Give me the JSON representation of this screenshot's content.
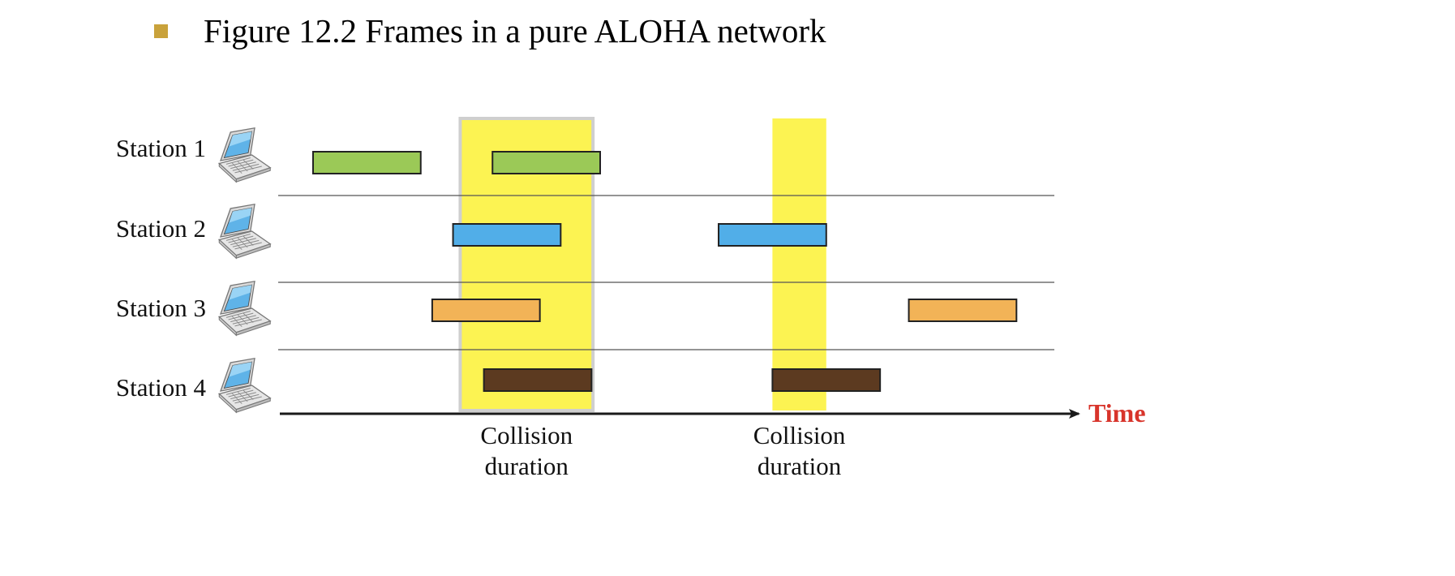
{
  "title": "Figure 12.2  Frames in a pure ALOHA network",
  "colors": {
    "bullet": "#C9A23B",
    "collision_band": "#FCF352",
    "collision_border": "#CFCFCF",
    "frame_station1": "#9BC957",
    "frame_station2": "#51AEE8",
    "frame_station3": "#F2B357",
    "frame_station4": "#5C3A20",
    "time_label": "#D8342B",
    "axis": "#1a1a1a",
    "separator": "#555555"
  },
  "stations": [
    {
      "label": "Station 1",
      "icon": "laptop-icon",
      "frames": [
        {
          "start": 0.0,
          "collided": false
        },
        {
          "start": 2.5,
          "collided": true
        }
      ]
    },
    {
      "label": "Station 2",
      "icon": "laptop-icon",
      "frames": [
        {
          "start": 1.95,
          "collided": true
        },
        {
          "start": 5.65,
          "collided": true
        }
      ]
    },
    {
      "label": "Station 3",
      "icon": "laptop-icon",
      "frames": [
        {
          "start": 1.66,
          "collided": true
        },
        {
          "start": 8.3,
          "collided": false
        }
      ]
    },
    {
      "label": "Station 4",
      "icon": "laptop-icon",
      "frames": [
        {
          "start": 2.38,
          "collided": true
        },
        {
          "start": 6.4,
          "collided": true
        }
      ]
    }
  ],
  "frame_duration": 1.5,
  "collisions": [
    {
      "start": 2.05,
      "end": 3.9,
      "label_line1": "Collision",
      "label_line2": "duration"
    },
    {
      "start": 6.4,
      "end": 7.15,
      "label_line1": "Collision",
      "label_line2": "duration"
    }
  ],
  "axis_label": "Time"
}
